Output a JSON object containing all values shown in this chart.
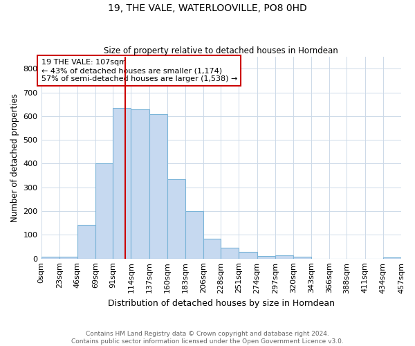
{
  "title": "19, THE VALE, WATERLOOVILLE, PO8 0HD",
  "subtitle": "Size of property relative to detached houses in Horndean",
  "xlabel": "Distribution of detached houses by size in Horndean",
  "ylabel": "Number of detached properties",
  "bar_edges": [
    0,
    23,
    46,
    69,
    91,
    114,
    137,
    160,
    183,
    206,
    228,
    251,
    274,
    297,
    320,
    343,
    366,
    388,
    411,
    434,
    457
  ],
  "bar_heights": [
    7,
    7,
    143,
    400,
    635,
    630,
    607,
    335,
    200,
    85,
    46,
    28,
    11,
    13,
    8,
    0,
    0,
    0,
    0,
    5
  ],
  "bar_color": "#c6d9f0",
  "bar_edgecolor": "#7ab4d8",
  "property_value": 107,
  "vline_color": "#cc0000",
  "annotation_text": "19 THE VALE: 107sqm\n← 43% of detached houses are smaller (1,174)\n57% of semi-detached houses are larger (1,538) →",
  "annotation_box_color": "#ffffff",
  "annotation_box_edgecolor": "#cc0000",
  "ylim": [
    0,
    850
  ],
  "yticks": [
    0,
    100,
    200,
    300,
    400,
    500,
    600,
    700,
    800
  ],
  "footer_text": "Contains HM Land Registry data © Crown copyright and database right 2024.\nContains public sector information licensed under the Open Government Licence v3.0.",
  "background_color": "#ffffff",
  "grid_color": "#ccd9e8"
}
